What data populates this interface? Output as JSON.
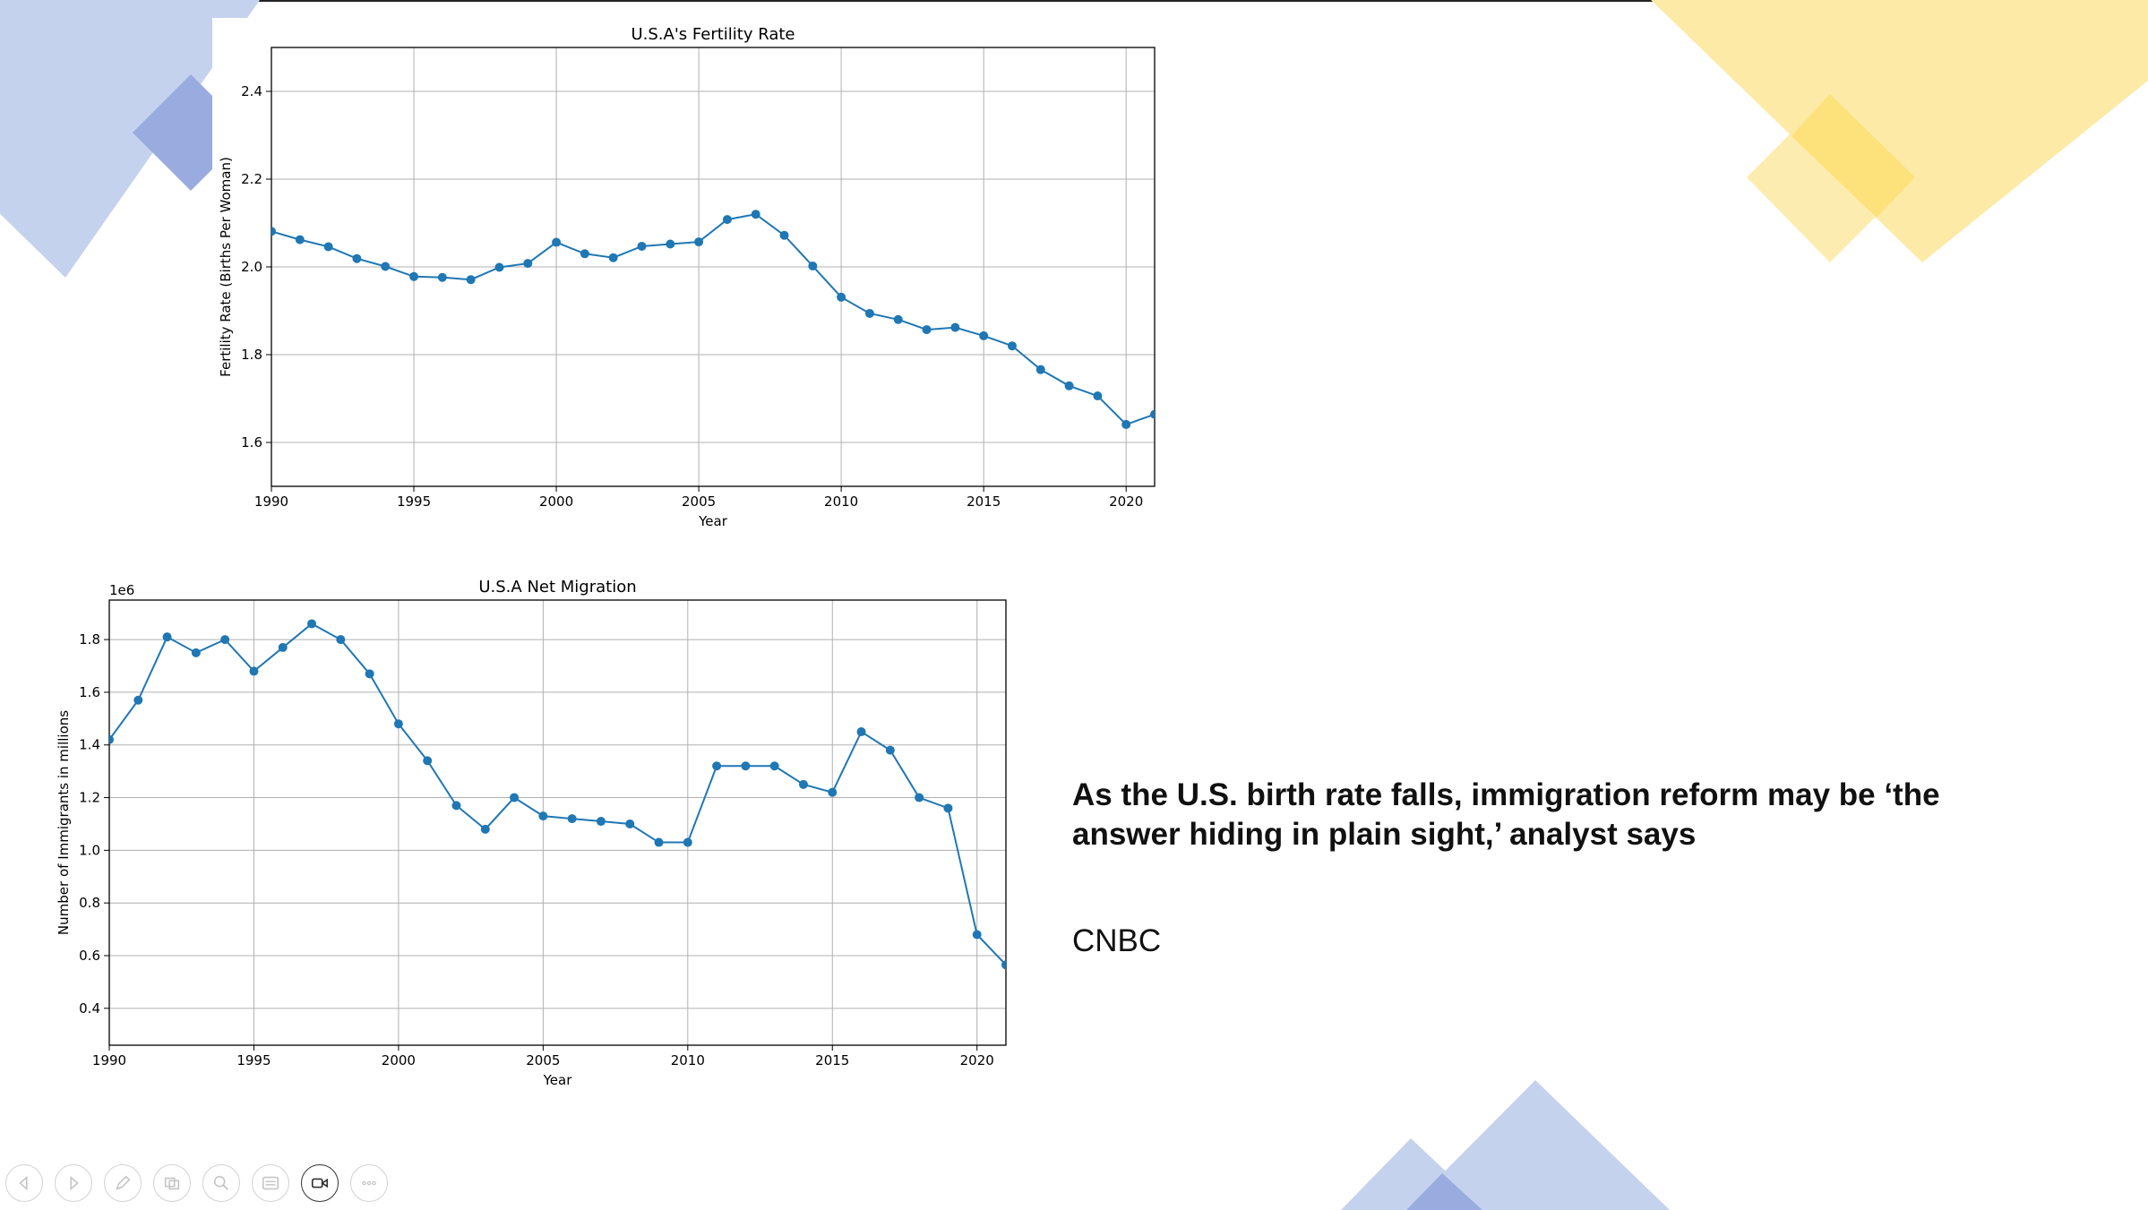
{
  "slide": {
    "headline": "As the U.S. birth rate falls, immigration reform may be ‘the answer hiding in plain sight,’ analyst says",
    "source": "CNBC",
    "colors": {
      "deco_blue": "#c5d2ee",
      "deco_blue_dark": "#9aacdf",
      "deco_yellow": "#fdeaa7",
      "deco_yellow_dark": "#fde27c",
      "series": "#1f77b4"
    }
  },
  "toolbar": {
    "buttons": [
      {
        "name": "previous-slide-icon"
      },
      {
        "name": "next-slide-icon"
      },
      {
        "name": "pen-icon"
      },
      {
        "name": "slides-grid-icon"
      },
      {
        "name": "zoom-icon"
      },
      {
        "name": "subtitles-icon"
      },
      {
        "name": "camera-icon",
        "active": true
      },
      {
        "name": "more-options-icon"
      }
    ]
  },
  "chart_data": [
    {
      "type": "line",
      "title": "U.S.A's Fertility Rate",
      "xlabel": "Year",
      "ylabel": "Fertility Rate (Births Per Woman)",
      "xlim": [
        1990,
        2021
      ],
      "ylim": [
        1.5,
        2.5
      ],
      "xticks": [
        1990,
        1995,
        2000,
        2005,
        2010,
        2015,
        2020
      ],
      "yticks": [
        1.6,
        1.8,
        2.0,
        2.2,
        2.4
      ],
      "ytick_labels": [
        "1.6",
        "1.8",
        "2.0",
        "2.2",
        "2.4"
      ],
      "grid": true,
      "x": [
        1990,
        1991,
        1992,
        1993,
        1994,
        1995,
        1996,
        1997,
        1998,
        1999,
        2000,
        2001,
        2002,
        2003,
        2004,
        2005,
        2006,
        2007,
        2008,
        2009,
        2010,
        2011,
        2012,
        2013,
        2014,
        2015,
        2016,
        2017,
        2018,
        2019,
        2020,
        2021
      ],
      "y": [
        2.081,
        2.062,
        2.046,
        2.019,
        2.001,
        1.978,
        1.976,
        1.971,
        1.999,
        2.008,
        2.056,
        2.03,
        2.021,
        2.047,
        2.052,
        2.057,
        2.108,
        2.12,
        2.072,
        2.002,
        1.931,
        1.894,
        1.88,
        1.857,
        1.862,
        1.843,
        1.82,
        1.766,
        1.729,
        1.706,
        1.641,
        1.664
      ]
    },
    {
      "type": "line",
      "title": "U.S.A Net Migration",
      "xlabel": "Year",
      "ylabel": "Number of Immigrants in millions",
      "offset_label": "1e6",
      "xlim": [
        1990,
        2021
      ],
      "ylim": [
        260000,
        1950000
      ],
      "xticks": [
        1990,
        1995,
        2000,
        2005,
        2010,
        2015,
        2020
      ],
      "yticks": [
        400000,
        600000,
        800000,
        1000000,
        1200000,
        1400000,
        1600000,
        1800000
      ],
      "ytick_labels": [
        "0.4",
        "0.6",
        "0.8",
        "1.0",
        "1.2",
        "1.4",
        "1.6",
        "1.8"
      ],
      "grid": true,
      "x": [
        1990,
        1991,
        1992,
        1993,
        1994,
        1995,
        1996,
        1997,
        1998,
        1999,
        2000,
        2001,
        2002,
        2003,
        2004,
        2005,
        2006,
        2007,
        2008,
        2009,
        2010,
        2011,
        2012,
        2013,
        2014,
        2015,
        2016,
        2017,
        2018,
        2019,
        2020,
        2021
      ],
      "y": [
        1420000,
        1570000,
        1810000,
        1750000,
        1800000,
        1680000,
        1770000,
        1860000,
        1800000,
        1670000,
        1480000,
        1340000,
        1170000,
        1080000,
        1200000,
        1130000,
        1120000,
        1110000,
        1100000,
        1030000,
        1030000,
        1320000,
        1320000,
        1320000,
        1250000,
        1220000,
        1450000,
        1380000,
        1200000,
        1160000,
        680000,
        565000
      ]
    }
  ]
}
